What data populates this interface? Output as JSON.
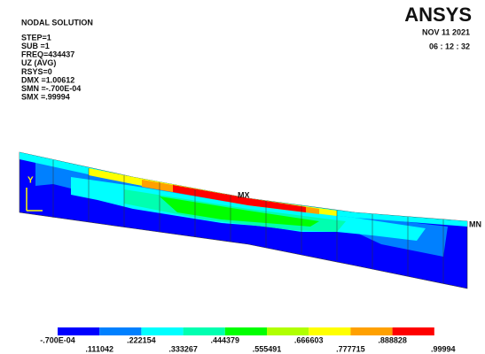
{
  "header": {
    "title": "NODAL SOLUTION",
    "lines": [
      "STEP=1",
      "SUB =1",
      "FREQ=434437",
      "UZ      (AVG)",
      "RSYS=0",
      "DMX =1.00612",
      "SMN =-.700E-04",
      "SMX =.99994"
    ]
  },
  "logo": "ANSYS",
  "date": "NOV 11 2021",
  "time": "06 : 12 : 32",
  "markers": {
    "max": "MX",
    "min": "MN",
    "axis": "Y"
  },
  "legend": {
    "labels": [
      "-.700E-04",
      ".111042",
      ".222154",
      ".333267",
      ".444379",
      ".555491",
      ".666603",
      ".777715",
      ".888828",
      ".99994"
    ],
    "colors": [
      "#0000ff",
      "#0080ff",
      "#00ffff",
      "#00ffb0",
      "#00ff00",
      "#b0ff00",
      "#ffff00",
      "#ffa000",
      "#ff0000"
    ]
  }
}
